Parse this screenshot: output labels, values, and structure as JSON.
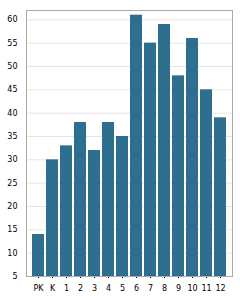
{
  "chart_data": {
    "type": "bar",
    "categories": [
      "PK",
      "K",
      "1",
      "2",
      "3",
      "4",
      "5",
      "6",
      "7",
      "8",
      "9",
      "10",
      "11",
      "12"
    ],
    "values": [
      14,
      30,
      33,
      38,
      32,
      38,
      35,
      61,
      55,
      59,
      48,
      56,
      45,
      39
    ],
    "color": "#2e6e8e",
    "ylim": [
      5,
      62
    ],
    "yticks": [
      5,
      10,
      15,
      20,
      25,
      30,
      35,
      40,
      45,
      50,
      55,
      60
    ],
    "grid": true
  }
}
